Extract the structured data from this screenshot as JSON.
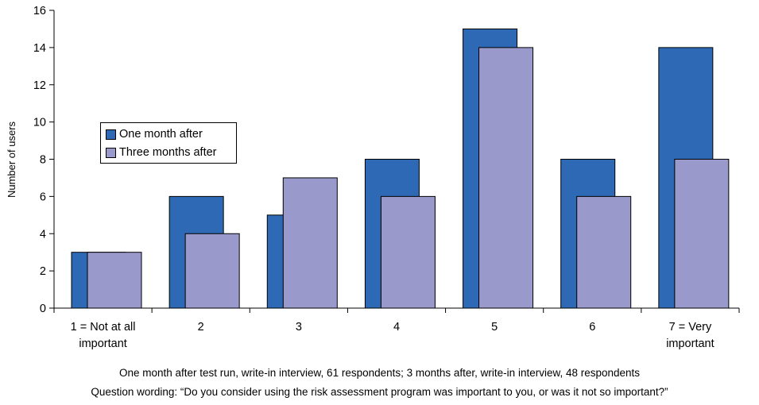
{
  "chart_data": {
    "type": "bar",
    "ylabel": "Number of users",
    "ylim": [
      0,
      16
    ],
    "yticks": [
      0,
      2,
      4,
      6,
      8,
      10,
      12,
      14,
      16
    ],
    "categories": [
      [
        "1 = Not at all",
        "important"
      ],
      [
        "2"
      ],
      [
        "3"
      ],
      [
        "4"
      ],
      [
        "5"
      ],
      [
        "6"
      ],
      [
        "7 = Very",
        "important"
      ]
    ],
    "series": [
      {
        "name": "One month after",
        "color": "#2e69b5",
        "values": [
          3,
          6,
          5,
          8,
          15,
          8,
          14
        ]
      },
      {
        "name": "Three months after",
        "color": "#9999cc",
        "values": [
          3,
          4,
          7,
          6,
          14,
          6,
          8
        ]
      }
    ],
    "legend_position": "left"
  },
  "notes": {
    "line1": "One month after test run, write-in interview, 61 respondents; 3 months after, write-in interview, 48 respondents",
    "line2": "Question wording: “Do you consider using the risk assessment program was important to you, or was it not so important?”"
  }
}
